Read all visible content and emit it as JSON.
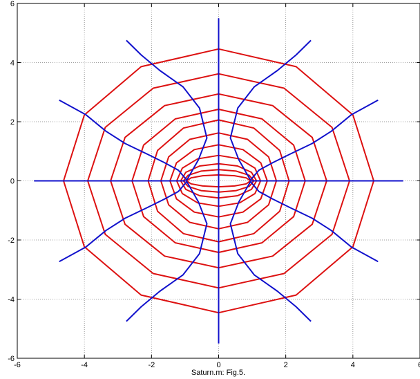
{
  "chart_data": {
    "type": "line",
    "title": "",
    "xlabel": "Saturn.m: Fig.5.",
    "ylabel": "",
    "xlim": [
      -6,
      6
    ],
    "ylim": [
      -6,
      6
    ],
    "xticks": [
      -6,
      -4,
      -2,
      0,
      2,
      4,
      6
    ],
    "yticks": [
      -6,
      -4,
      -2,
      0,
      2,
      4,
      6
    ],
    "grid": true,
    "grid_style": "dotted",
    "colors": {
      "rings": "#dd1111",
      "rays": "#1111cc",
      "axes": "#000000",
      "grid": "#7f7f7f"
    },
    "rings": {
      "color": "#dd1111",
      "x_intercepts": [
        0.95,
        1.05,
        1.13,
        1.25,
        1.45,
        1.72,
        2.1,
        2.58,
        3.22,
        3.9,
        4.62
      ],
      "y_intercepts": [
        0.2,
        0.38,
        0.58,
        0.86,
        1.22,
        1.62,
        2.06,
        2.42,
        2.94,
        3.62,
        4.46
      ],
      "vertices_per_ring": 12
    },
    "rays": {
      "color": "#1111cc",
      "series": [
        {
          "x": [
            0,
            0
          ],
          "y": [
            0,
            5.5
          ]
        },
        {
          "x": [
            0,
            0
          ],
          "y": [
            0,
            -5.5
          ]
        },
        {
          "x": [
            0.95,
            5.5
          ],
          "y": [
            0,
            0
          ]
        },
        {
          "x": [
            -0.95,
            -5.5
          ],
          "y": [
            0,
            0
          ]
        },
        {
          "x": [
            0.95,
            0.6,
            0.35,
            0.57,
            1.06,
            1.75,
            2.31,
            2.75
          ],
          "y": [
            0.02,
            0.72,
            1.45,
            2.46,
            3.18,
            3.73,
            4.26,
            4.75
          ]
        },
        {
          "x": [
            -0.95,
            -0.6,
            -0.35,
            -0.57,
            -1.06,
            -1.75,
            -2.31,
            -2.75
          ],
          "y": [
            0.02,
            0.72,
            1.45,
            2.46,
            3.18,
            3.73,
            4.26,
            4.75
          ]
        },
        {
          "x": [
            0.95,
            0.6,
            0.35,
            0.57,
            1.06,
            1.75,
            2.31,
            2.75
          ],
          "y": [
            -0.02,
            -0.72,
            -1.45,
            -2.46,
            -3.18,
            -3.73,
            -4.26,
            -4.75
          ]
        },
        {
          "x": [
            -0.95,
            -0.6,
            -0.35,
            -0.57,
            -1.06,
            -1.75,
            -2.31,
            -2.75
          ],
          "y": [
            -0.02,
            -0.72,
            -1.45,
            -2.46,
            -3.18,
            -3.73,
            -4.26,
            -4.75
          ]
        },
        {
          "x": [
            0.95,
            1.2,
            1.62,
            2.12,
            2.78,
            3.36,
            3.96,
            4.75
          ],
          "y": [
            0.03,
            0.36,
            0.62,
            0.9,
            1.26,
            1.68,
            2.24,
            2.73
          ]
        },
        {
          "x": [
            -0.95,
            -1.2,
            -1.62,
            -2.12,
            -2.78,
            -3.36,
            -3.96,
            -4.75
          ],
          "y": [
            0.03,
            0.36,
            0.62,
            0.9,
            1.26,
            1.68,
            2.24,
            2.73
          ]
        },
        {
          "x": [
            0.95,
            1.2,
            1.62,
            2.12,
            2.78,
            3.36,
            3.96,
            4.75
          ],
          "y": [
            -0.03,
            -0.36,
            -0.62,
            -0.9,
            -1.26,
            -1.68,
            -2.24,
            -2.73
          ]
        },
        {
          "x": [
            -0.95,
            -1.2,
            -1.62,
            -2.12,
            -2.78,
            -3.36,
            -3.96,
            -4.75
          ],
          "y": [
            -0.03,
            -0.36,
            -0.62,
            -0.9,
            -1.26,
            -1.68,
            -2.24,
            -2.73
          ]
        }
      ]
    }
  }
}
